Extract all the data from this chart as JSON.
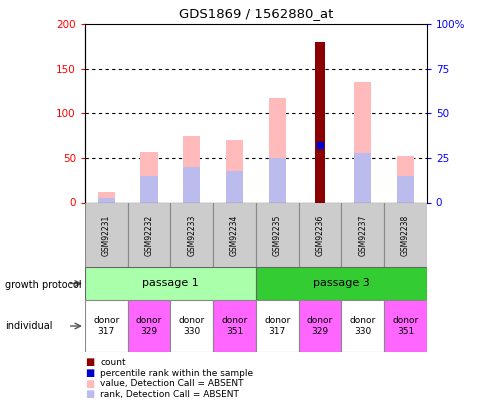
{
  "title": "GDS1869 / 1562880_at",
  "samples": [
    "GSM92231",
    "GSM92232",
    "GSM92233",
    "GSM92234",
    "GSM92235",
    "GSM92236",
    "GSM92237",
    "GSM92238"
  ],
  "count_values": [
    null,
    null,
    null,
    null,
    null,
    180,
    null,
    null
  ],
  "percentile_rank": [
    null,
    null,
    null,
    null,
    null,
    65,
    null,
    null
  ],
  "value_absent": [
    12,
    57,
    75,
    70,
    117,
    null,
    135,
    52
  ],
  "rank_absent": [
    5,
    30,
    40,
    35,
    50,
    null,
    55,
    30
  ],
  "ylim_left": [
    0,
    200
  ],
  "ylim_right": [
    0,
    100
  ],
  "yticks_left": [
    0,
    50,
    100,
    150,
    200
  ],
  "yticks_right": [
    0,
    25,
    50,
    75,
    100
  ],
  "ytick_labels_left": [
    "0",
    "50",
    "100",
    "150",
    "200"
  ],
  "ytick_labels_right": [
    "0",
    "25",
    "50",
    "75",
    "100%"
  ],
  "passage_1_label": "passage 1",
  "passage_3_label": "passage 3",
  "individuals": [
    "donor\n317",
    "donor\n329",
    "donor\n330",
    "donor\n351",
    "donor\n317",
    "donor\n329",
    "donor\n330",
    "donor\n351"
  ],
  "individual_colors": [
    "#ffffff",
    "#ff66ff",
    "#ffffff",
    "#ff66ff",
    "#ffffff",
    "#ff66ff",
    "#ffffff",
    "#ff66ff"
  ],
  "passage_1_color": "#aaffaa",
  "passage_3_color": "#33cc33",
  "count_color": "#8b0000",
  "percentile_color": "#0000cc",
  "value_absent_color": "#ffbbbb",
  "rank_absent_color": "#bbbbee",
  "bar_width": 0.4,
  "growth_protocol_label": "growth protocol",
  "individual_label": "individual",
  "legend_items": [
    {
      "label": "count",
      "color": "#8b0000"
    },
    {
      "label": "percentile rank within the sample",
      "color": "#0000cc"
    },
    {
      "label": "value, Detection Call = ABSENT",
      "color": "#ffbbbb"
    },
    {
      "label": "rank, Detection Call = ABSENT",
      "color": "#bbbbee"
    }
  ]
}
